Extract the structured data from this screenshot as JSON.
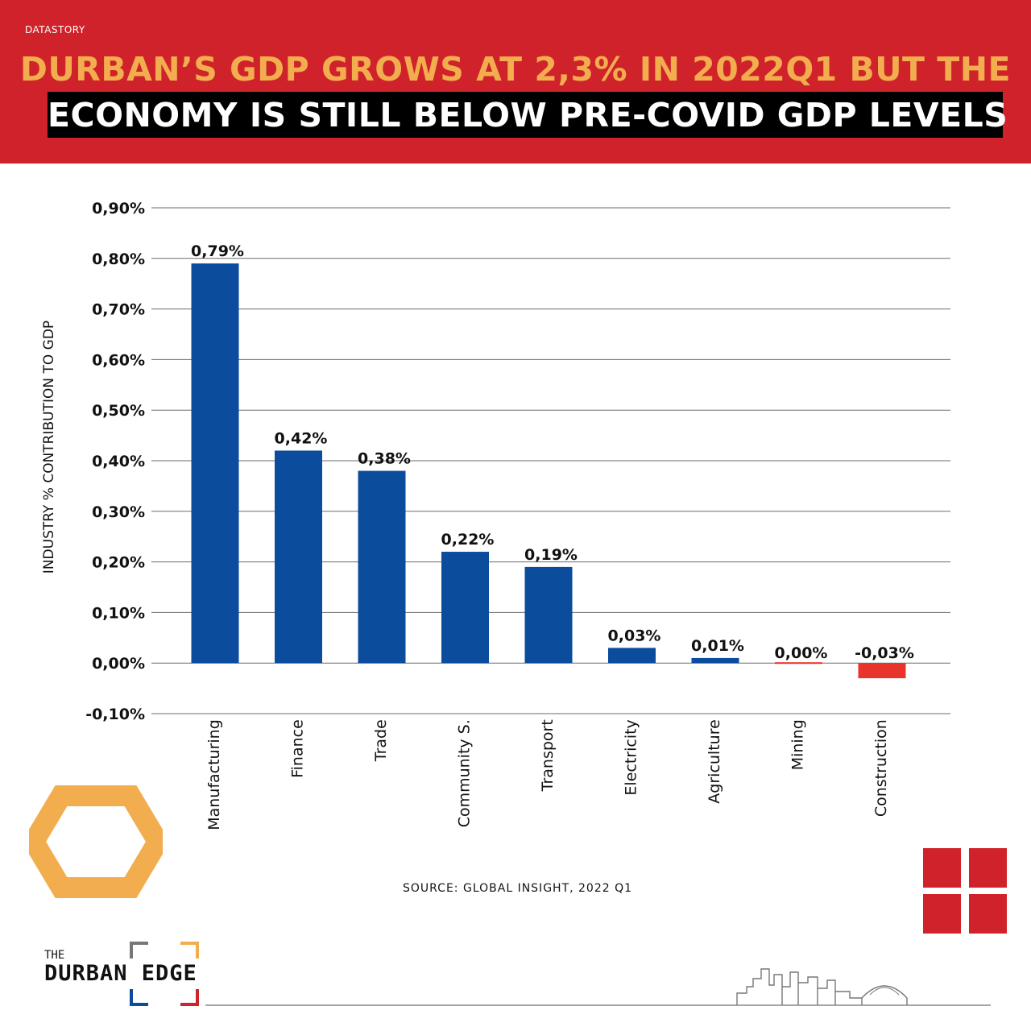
{
  "header": {
    "kicker": "DATASTORY",
    "title_line1": "DURBAN’S GDP GROWS AT 2,3% IN 2022Q1 BUT THE",
    "title_line2": "ECONOMY IS STILL BELOW PRE-COVID GDP LEVELS"
  },
  "colors": {
    "banner": "#d0222a",
    "accent_orange": "#f2ad4e",
    "bar_positive": "#0b4c9c",
    "bar_negative": "#e8342b"
  },
  "chart_data": {
    "type": "bar",
    "title": "",
    "xlabel": "",
    "ylabel": "INDUSTRY % CONTRIBUTION TO GDP",
    "categories": [
      "Manufacturing",
      "Finance",
      "Trade",
      "Community S.",
      "Transport",
      "Electricity",
      "Agriculture",
      "Mining",
      "Construction"
    ],
    "values": [
      0.79,
      0.42,
      0.38,
      0.22,
      0.19,
      0.03,
      0.01,
      0.0,
      -0.03
    ],
    "value_labels": [
      "0,79%",
      "0,42%",
      "0,38%",
      "0,22%",
      "0,19%",
      "0,03%",
      "0,01%",
      "0,00%",
      "-0,03%"
    ],
    "ylim": [
      -0.1,
      0.9
    ],
    "yticks": [
      0.9,
      0.8,
      0.7,
      0.6,
      0.5,
      0.4,
      0.3,
      0.2,
      0.1,
      0.0,
      -0.1
    ],
    "ytick_labels": [
      "0,90%",
      "0,80%",
      "0,70%",
      "0,60%",
      "0,50%",
      "0,40%",
      "0,30%",
      "0,20%",
      "0,10%",
      "0,00%",
      "-0,10%"
    ],
    "grid": true,
    "legend": "none"
  },
  "footer": {
    "source": "SOURCE: GLOBAL INSIGHT, 2022 Q1",
    "brand_small": "THE",
    "brand_main": "DURBAN EDGE"
  }
}
